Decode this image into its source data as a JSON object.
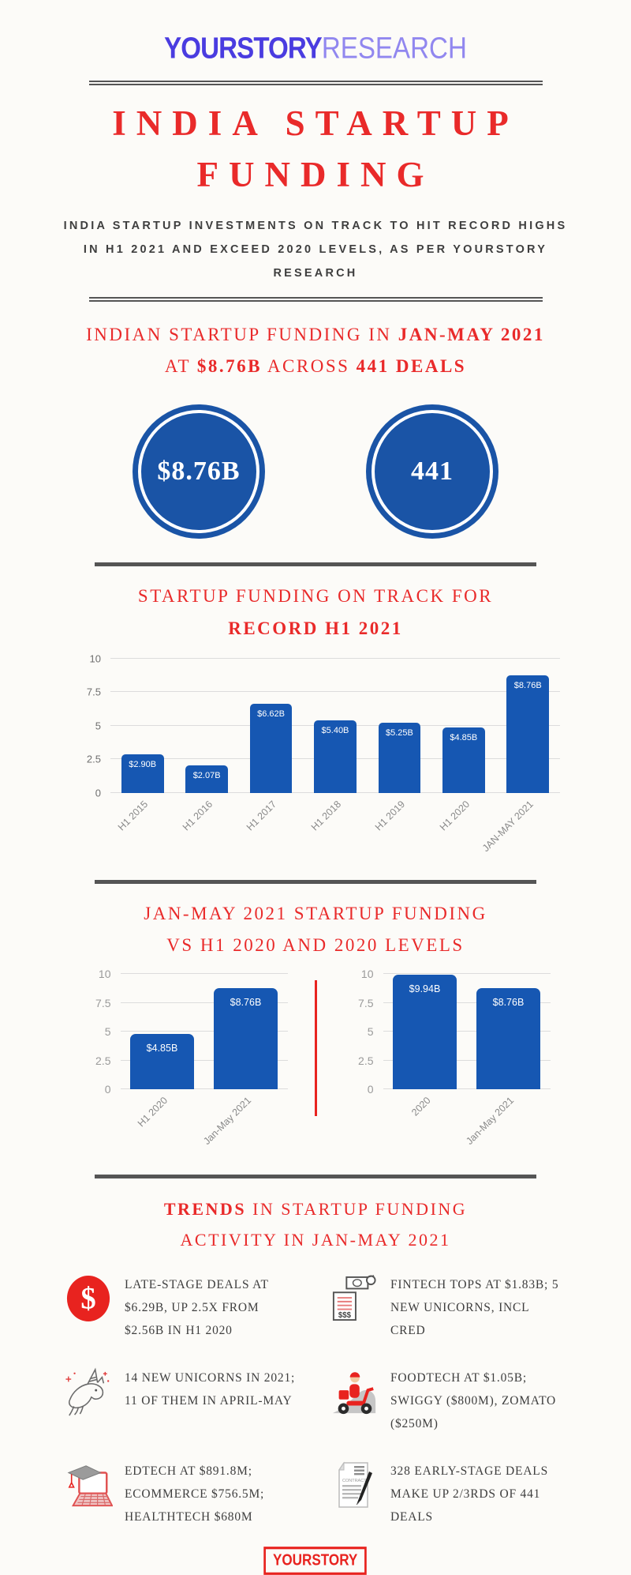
{
  "colors": {
    "red": "#e92a2a",
    "blue": "#1657b2",
    "circle_blue": "#1a54a6",
    "divider": "#555555",
    "logo_purple": "#4a3ce0",
    "logo_light_purple": "#9187ef"
  },
  "header": {
    "logo_primary": "YOURSTORY",
    "logo_secondary": "RESEARCH",
    "title_line1": "INDIA STARTUP",
    "title_line2": "FUNDING",
    "subtitle": "INDIA STARTUP INVESTMENTS ON TRACK TO HIT RECORD HIGHS IN H1 2021 AND EXCEED 2020 LEVELS, AS PER YOURSTORY RESEARCH"
  },
  "summary": {
    "heading_pre": "INDIAN STARTUP FUNDING IN ",
    "heading_bold1": "JAN-MAY 2021",
    "heading_line2_pre": "AT ",
    "heading_bold2": "$8.76B",
    "heading_mid": " ACROSS ",
    "heading_bold3": "441 DEALS",
    "circle1_value": "$8.76B",
    "circle2_value": "441"
  },
  "chart1_heading": {
    "line1": "STARTUP FUNDING ON TRACK FOR",
    "line2": "RECORD H1 2021"
  },
  "chart2_heading": {
    "line1": "JAN-MAY 2021 STARTUP FUNDING",
    "line2": "VS H1 2020 AND 2020 LEVELS"
  },
  "chart_data": [
    {
      "type": "bar",
      "title": "STARTUP FUNDING ON TRACK FOR RECORD H1 2021",
      "categories": [
        "H1 2015",
        "H1 2016",
        "H1 2017",
        "H1 2018",
        "H1 2019",
        "H1 2020",
        "JAN-MAY 2021"
      ],
      "values": [
        2.9,
        2.07,
        6.62,
        5.4,
        5.25,
        4.85,
        8.76
      ],
      "bar_labels": [
        "$2.90B",
        "$2.07B",
        "$6.62B",
        "$5.40B",
        "$5.25B",
        "$4.85B",
        "$8.76B"
      ],
      "xlabel": "",
      "ylabel": "",
      "ylim": [
        0,
        10
      ],
      "yticks": [
        0,
        2.5,
        5,
        7.5,
        10
      ],
      "grid": true,
      "legend": "none",
      "bar_color": "#1657b2"
    },
    {
      "type": "bar",
      "title": "Jan-May 2021 startup funding vs H1 2020",
      "categories": [
        "H1 2020",
        "Jan-May 2021"
      ],
      "values": [
        4.85,
        8.76
      ],
      "bar_labels": [
        "$4.85B",
        "$8.76B"
      ],
      "xlabel": "",
      "ylabel": "",
      "ylim": [
        0,
        10
      ],
      "yticks": [
        0,
        2.5,
        5,
        7.5,
        10
      ],
      "grid": true,
      "legend": "none",
      "bar_color": "#1657b2"
    },
    {
      "type": "bar",
      "title": "Jan-May 2021 startup funding vs 2020 levels",
      "categories": [
        "2020",
        "Jan-May 2021"
      ],
      "values": [
        9.94,
        8.76
      ],
      "bar_labels": [
        "$9.94B",
        "$8.76B"
      ],
      "xlabel": "",
      "ylabel": "",
      "ylim": [
        0,
        10
      ],
      "yticks": [
        0,
        2.5,
        5,
        7.5,
        10
      ],
      "grid": true,
      "legend": "none",
      "bar_color": "#1657b2"
    }
  ],
  "trends": {
    "heading_bold": "TRENDS",
    "heading_rest": " IN STARTUP FUNDING",
    "heading_line2": "ACTIVITY IN JAN-MAY 2021",
    "items": [
      {
        "icon": "dollar-circle-icon",
        "text": "LATE-STAGE DEALS AT $6.29B, UP 2.5X FROM $2.56B IN H1 2020"
      },
      {
        "icon": "fintech-cash-receipt-icon",
        "text": "FINTECH TOPS AT $1.83B; 5 NEW UNICORNS, INCL CRED"
      },
      {
        "icon": "unicorn-icon",
        "text": "14 NEW UNICORNS IN 2021; 11 OF THEM IN APRIL-MAY"
      },
      {
        "icon": "delivery-scooter-icon",
        "text": "FOODTECH AT $1.05B; SWIGGY ($800M), ZOMATO ($250M)"
      },
      {
        "icon": "edtech-laptop-icon",
        "text": "EDTECH AT $891.8M; ECOMMERCE $756.5M; HEALTHTECH $680M"
      },
      {
        "icon": "contract-icon",
        "text": "328 EARLY-STAGE DEALS MAKE UP 2/3RDS OF 441 DEALS"
      }
    ]
  },
  "footer": {
    "logo": "YOURSTORY"
  }
}
